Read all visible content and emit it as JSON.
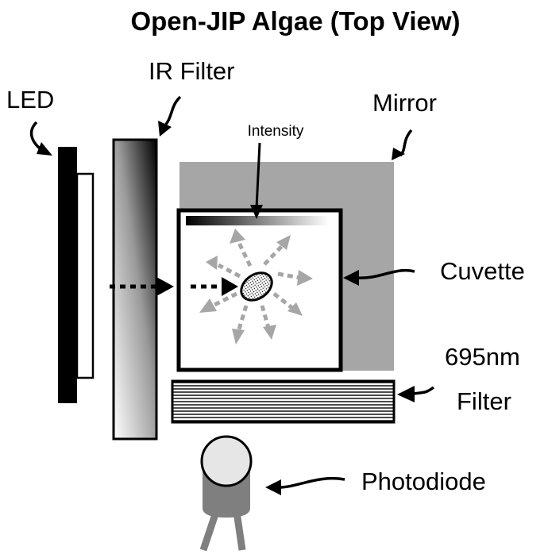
{
  "title": "Open-JIP Algae (Top View)",
  "labels": {
    "led": "LED",
    "ir_filter": "IR Filter",
    "mirror": "Mirror",
    "intensity": "Intensity",
    "cuvette": "Cuvette",
    "filter_695_line1": "695nm",
    "filter_695_line2": "Filter",
    "photodiode": "Photodiode"
  },
  "colors": {
    "mirror": "#a6a6a6",
    "scatter_arrow": "#a6a6a6",
    "photodiode_body": "#7f7f7f",
    "photodiode_lens": "#e6e6e6"
  }
}
